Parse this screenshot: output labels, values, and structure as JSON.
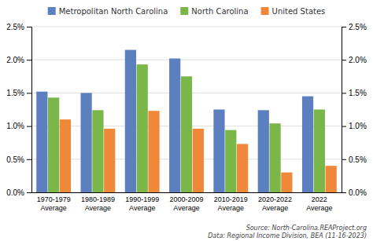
{
  "chart_data": {
    "type": "bar",
    "categories": [
      "1970-1979\nAverage",
      "1980-1989\nAverage",
      "1990-1999\nAverage",
      "2000-2009\nAverage",
      "2010-2019\nAverage",
      "2020-2022\nAverage",
      "2022\nAverage"
    ],
    "series": [
      {
        "name": "Metropolitan North Carolina",
        "color": "#5b7fbf",
        "values": [
          0.0152,
          0.015,
          0.0215,
          0.0202,
          0.0125,
          0.0124,
          0.0145
        ]
      },
      {
        "name": "North Carolina",
        "color": "#7ab648",
        "values": [
          0.0143,
          0.0124,
          0.0193,
          0.0175,
          0.0094,
          0.0104,
          0.0125
        ]
      },
      {
        "name": "United States",
        "color": "#f0883a",
        "values": [
          0.011,
          0.0096,
          0.0123,
          0.0096,
          0.0073,
          0.003,
          0.004
        ]
      }
    ],
    "ylim": [
      0.0,
      0.025
    ],
    "yticks": [
      {
        "value": 0.0,
        "label": "0.0%"
      },
      {
        "value": 0.005,
        "label": "0.5%"
      },
      {
        "value": 0.01,
        "label": "1.0%"
      },
      {
        "value": 0.015,
        "label": "1.5%"
      },
      {
        "value": 0.02,
        "label": "2.0%"
      },
      {
        "value": 0.025,
        "label": "2.5%"
      }
    ],
    "grid": true,
    "legend": "top",
    "annotations": [
      "Source: North-Carolina.REAProject.org\nData: Regional Income Division, BEA (11-16-2023)"
    ]
  }
}
